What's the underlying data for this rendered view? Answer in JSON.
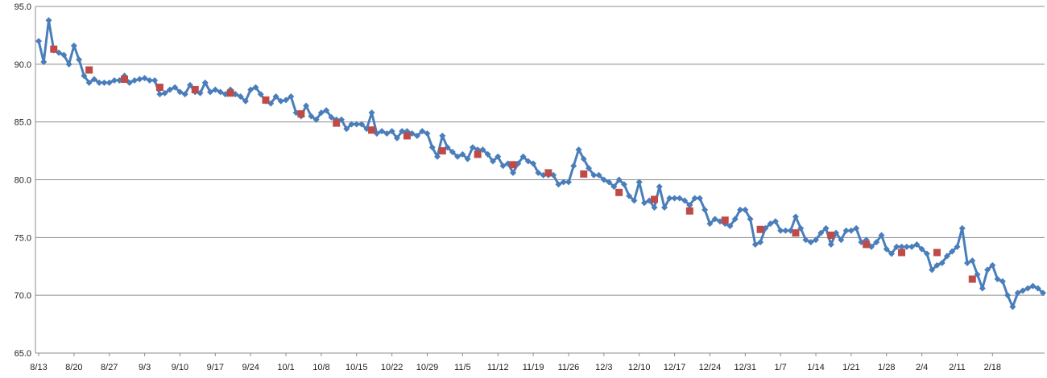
{
  "chart_data": {
    "type": "line",
    "title": "",
    "xlabel": "",
    "ylabel": "",
    "ylim": [
      65,
      95
    ],
    "yticks": [
      "65.0",
      "70.0",
      "75.0",
      "80.0",
      "85.0",
      "90.0",
      "95.0"
    ],
    "xticks": [
      "8/13",
      "8/20",
      "8/27",
      "9/3",
      "9/10",
      "9/17",
      "9/24",
      "10/1",
      "10/8",
      "10/15",
      "10/22",
      "10/29",
      "11/5",
      "11/12",
      "11/19",
      "11/26",
      "12/3",
      "12/10",
      "12/17",
      "12/24",
      "12/31",
      "1/7",
      "1/14",
      "1/21",
      "1/28",
      "2/4",
      "2/11",
      "2/18"
    ],
    "grid": true,
    "legend": "none",
    "colors": {
      "daily": "#4a7ebb",
      "weekly": "#be4b48"
    },
    "series": [
      {
        "kind": "daily",
        "values": [
          92.0,
          90.2,
          93.8,
          91.2,
          91.0,
          90.8,
          90.0,
          91.6,
          90.4,
          89.0,
          88.4,
          88.7,
          88.4,
          88.4,
          88.4,
          88.6,
          88.6,
          89.0,
          88.4,
          88.6,
          88.7,
          88.8,
          88.6,
          88.6,
          87.4,
          87.5,
          87.8,
          88.0,
          87.6,
          87.4,
          88.2,
          87.6,
          87.5,
          88.4,
          87.6,
          87.8,
          87.6,
          87.4,
          87.8,
          87.4,
          87.2,
          86.8,
          87.8,
          88.0,
          87.4,
          86.8,
          86.6,
          87.2,
          86.8,
          86.9,
          87.2,
          85.8,
          85.5,
          86.4,
          85.5,
          85.2,
          85.8,
          86.0,
          85.4,
          85.2,
          85.2,
          84.4,
          84.8,
          84.8,
          84.8,
          84.4,
          85.8,
          84.0,
          84.2,
          84.0,
          84.2,
          83.6,
          84.2,
          84.2,
          84.0,
          83.8,
          84.2,
          84.0,
          82.8,
          82.0,
          83.8,
          82.8,
          82.4,
          82.0,
          82.2,
          81.8,
          82.8,
          82.6,
          82.6,
          82.2,
          81.6,
          82.0,
          81.2,
          81.4,
          80.6,
          81.4,
          82.0,
          81.6,
          81.4,
          80.6,
          80.4,
          80.4,
          80.4,
          79.6,
          79.8,
          79.8,
          81.2,
          82.6,
          81.8,
          81.0,
          80.4,
          80.4,
          80.0,
          79.8,
          79.4,
          80.0,
          79.6,
          78.6,
          78.2,
          79.8,
          78.0,
          78.2,
          77.6,
          79.4,
          77.6,
          78.4,
          78.4,
          78.4,
          78.2,
          77.8,
          78.4,
          78.4,
          77.4,
          76.2,
          76.6,
          76.4,
          76.2,
          76.0,
          76.6,
          77.4,
          77.4,
          76.6,
          74.4,
          74.6,
          75.8,
          76.2,
          76.4,
          75.6,
          75.6,
          75.6,
          76.8,
          75.8,
          74.8,
          74.6,
          74.8,
          75.4,
          75.8,
          74.4,
          75.4,
          74.8,
          75.6,
          75.6,
          75.8,
          74.6,
          74.8,
          74.2,
          74.6,
          75.2,
          74.0,
          73.6,
          74.2,
          74.2,
          74.2,
          74.2,
          74.4,
          74.0,
          73.6,
          72.2,
          72.6,
          72.8,
          73.4,
          73.8,
          74.2,
          75.8,
          72.8,
          73.0,
          71.8,
          70.6,
          72.2,
          72.6,
          71.4,
          71.2,
          70.0,
          69.0,
          70.2,
          70.4,
          70.6,
          70.8,
          70.6,
          70.2
        ]
      },
      {
        "kind": "weekly",
        "values": [
          91.3,
          89.5,
          88.7,
          88.0,
          87.8,
          87.5,
          86.9,
          85.7,
          84.9,
          84.3,
          83.8,
          82.5,
          82.2,
          81.3,
          80.6,
          80.5,
          78.9,
          78.3,
          77.3,
          76.5,
          75.7,
          75.4,
          75.2,
          74.4,
          73.7,
          73.7,
          71.4
        ]
      }
    ]
  }
}
